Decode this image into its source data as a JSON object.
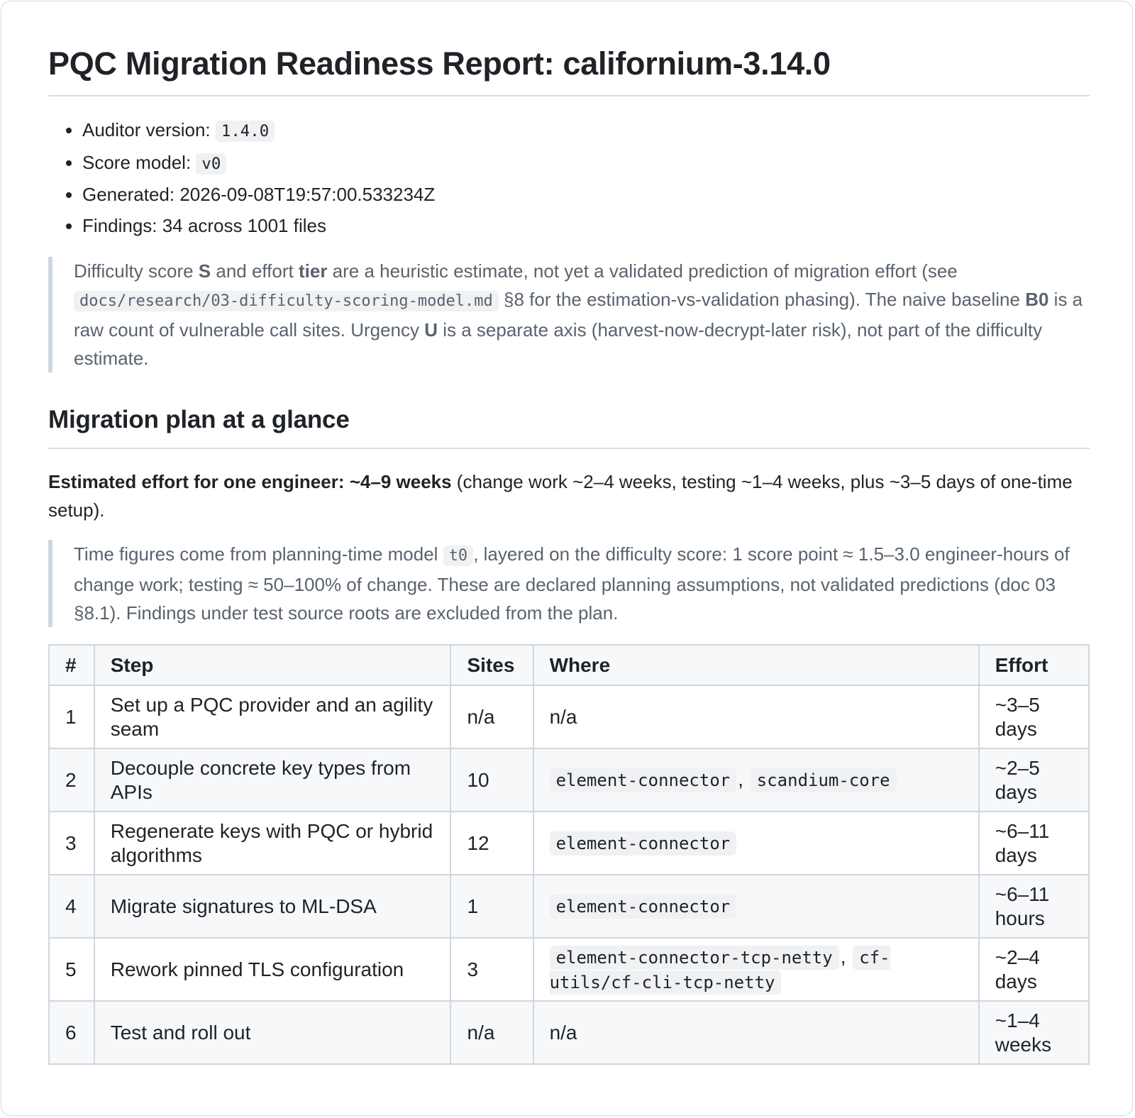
{
  "title": "PQC Migration Readiness Report: californium-3.14.0",
  "meta": [
    {
      "label": "Auditor version: ",
      "code": "1.4.0"
    },
    {
      "label": "Score model: ",
      "code": "v0"
    },
    {
      "label": "Generated: 2026-09-08T19:57:00.533234Z",
      "code": ""
    },
    {
      "label": "Findings: 34 across 1001 files",
      "code": ""
    }
  ],
  "disclaimer": {
    "t1": "Difficulty score ",
    "s": "S",
    "t2": " and effort ",
    "tier": "tier",
    "t3": " are a heuristic estimate, not yet a validated prediction of migration effort (see ",
    "doc_code": "docs/research/03-difficulty-scoring-model.md",
    "t4": " §8 for the estimation-vs-validation phasing). The naive baseline ",
    "b0": "B0",
    "t5": " is a raw count of vulnerable call sites. Urgency ",
    "u": "U",
    "t6": " is a separate axis (harvest-now-decrypt-later risk), not part of the difficulty estimate."
  },
  "plan": {
    "heading": "Migration plan at a glance",
    "effort_bold": "Estimated effort for one engineer: ~4–9 weeks",
    "effort_rest": " (change work ~2–4 weeks, testing ~1–4 weeks, plus ~3–5 days of one-time setup).",
    "note_t1": "Time figures come from planning-time model ",
    "note_code": "t0",
    "note_t2": ", layered on the difficulty score: 1 score point ≈ 1.5–3.0 engineer-hours of change work; testing ≈ 50–100% of change. These are declared planning assumptions, not validated predictions (doc 03 §8.1). Findings under test source roots are excluded from the plan."
  },
  "table": {
    "headers": [
      "#",
      "Step",
      "Sites",
      "Where",
      "Effort"
    ],
    "rows": [
      {
        "num": "1",
        "step": "Set up a PQC provider and an agility seam",
        "sites": "n/a",
        "where_text": "n/a",
        "where_codes": [],
        "effort": "~3–5 days"
      },
      {
        "num": "2",
        "step": "Decouple concrete key types from APIs",
        "sites": "10",
        "where_text": "",
        "where_codes": [
          "element-connector",
          "scandium-core"
        ],
        "effort": "~2–5 days"
      },
      {
        "num": "3",
        "step": "Regenerate keys with PQC or hybrid algorithms",
        "sites": "12",
        "where_text": "",
        "where_codes": [
          "element-connector"
        ],
        "effort": "~6–11 days"
      },
      {
        "num": "4",
        "step": "Migrate signatures to ML-DSA",
        "sites": "1",
        "where_text": "",
        "where_codes": [
          "element-connector"
        ],
        "effort": "~6–11 hours"
      },
      {
        "num": "5",
        "step": "Rework pinned TLS configuration",
        "sites": "3",
        "where_text": "",
        "where_codes": [
          "element-connector-tcp-netty",
          "cf-utils/cf-cli-tcp-netty"
        ],
        "effort": "~2–4 days"
      },
      {
        "num": "6",
        "step": "Test and roll out",
        "sites": "n/a",
        "where_text": "n/a",
        "where_codes": [],
        "effort": "~1–4 weeks"
      }
    ]
  }
}
